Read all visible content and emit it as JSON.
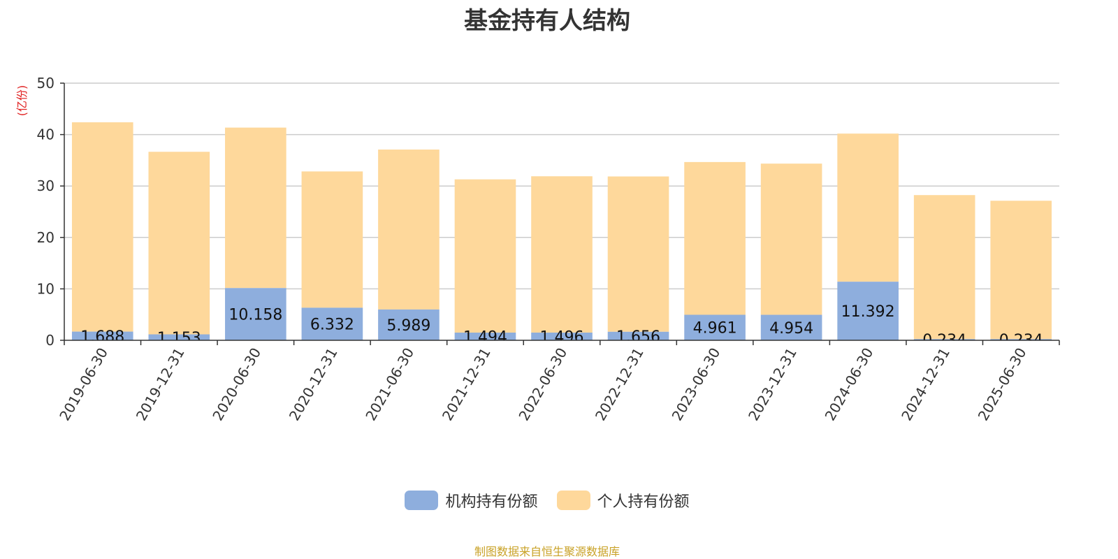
{
  "chart_data": {
    "type": "bar",
    "stacked": true,
    "title": "基金持有人结构",
    "ylabel": "(亿份)",
    "ylim": [
      0,
      50
    ],
    "yticks": [
      0,
      10,
      20,
      30,
      40,
      50
    ],
    "grid": true,
    "legend_position": "bottom",
    "categories": [
      "2019-06-30",
      "2019-12-31",
      "2020-06-30",
      "2020-12-31",
      "2021-06-30",
      "2021-12-31",
      "2022-06-30",
      "2022-12-31",
      "2023-06-30",
      "2023-12-31",
      "2024-06-30",
      "2024-12-31",
      "2025-06-30"
    ],
    "series": [
      {
        "name": "机构持有份额",
        "color": "#8eaedd",
        "values": [
          1.688,
          1.153,
          10.158,
          6.332,
          5.989,
          1.494,
          1.496,
          1.656,
          4.961,
          4.954,
          11.392,
          0.234,
          0.234
        ],
        "labels": [
          "1.688",
          "1.153",
          "10.158",
          "6.332",
          "5.989",
          "1.494",
          "1.496",
          "1.656",
          "4.961",
          "4.954",
          "11.392",
          "0.234",
          "0.234"
        ]
      },
      {
        "name": "个人持有份额",
        "color": "#fed89b",
        "values": [
          40.7,
          35.5,
          31.2,
          26.5,
          31.1,
          29.8,
          30.4,
          30.2,
          29.7,
          29.4,
          28.8,
          28.0,
          26.9
        ]
      }
    ]
  },
  "footer": {
    "source": "制图数据来自恒生聚源数据库"
  }
}
